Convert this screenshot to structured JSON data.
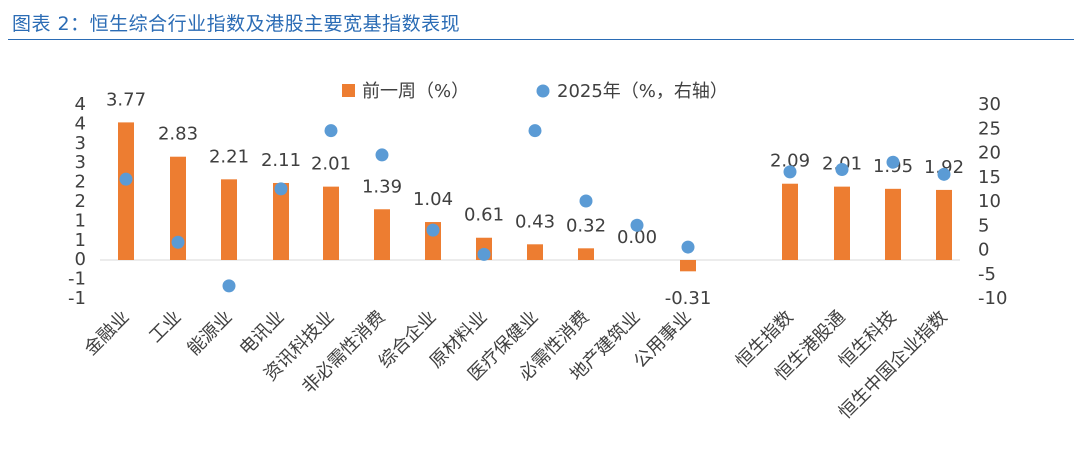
{
  "header": {
    "title": "图表 2：恒生综合行业指数及港股主要宽基指数表现"
  },
  "chart_data": {
    "type": "bar",
    "categories": [
      "金融业",
      "工业",
      "能源业",
      "电讯业",
      "资讯科技业",
      "非必需性消费",
      "综合企业",
      "原材料业",
      "医疗保健业",
      "必需性消费",
      "地产建筑业",
      "公用事业",
      "恒生指数",
      "恒生港股通",
      "恒生科技",
      "恒生中国企业指数"
    ],
    "series": [
      {
        "name": "前一周（%）",
        "kind": "bar",
        "axis": "left",
        "color": "#ed7d31",
        "values": [
          3.77,
          2.83,
          2.21,
          2.11,
          2.01,
          1.39,
          1.04,
          0.61,
          0.43,
          0.32,
          0.0,
          -0.31,
          2.09,
          2.01,
          1.95,
          1.92
        ],
        "labels": [
          "3.77",
          "2.83",
          "2.21",
          "2.11",
          "2.01",
          "1.39",
          "1.04",
          "0.61",
          "0.43",
          "0.32",
          "0.00",
          "-0.31",
          "2.09",
          "2.01",
          "1.95",
          "1.92"
        ]
      },
      {
        "name": "2025年（%，右轴）",
        "kind": "scatter",
        "axis": "right",
        "color": "#5b9bd5",
        "values": [
          14.5,
          1.5,
          -7.5,
          12.5,
          24.5,
          19.5,
          4.0,
          -1.0,
          24.5,
          10.0,
          5.0,
          0.5,
          16.0,
          16.5,
          18.0,
          15.5
        ]
      }
    ],
    "y_left": {
      "ticks": [
        "4",
        "4",
        "3",
        "3",
        "2",
        "2",
        "1",
        "1",
        "0",
        "-1",
        "-1"
      ]
    },
    "y_right": {
      "ylim": [
        -10,
        30
      ],
      "ticks": [
        "30",
        "25",
        "20",
        "15",
        "10",
        "5",
        "0",
        "-5",
        "-10"
      ]
    },
    "legend_placement": "top-center"
  }
}
